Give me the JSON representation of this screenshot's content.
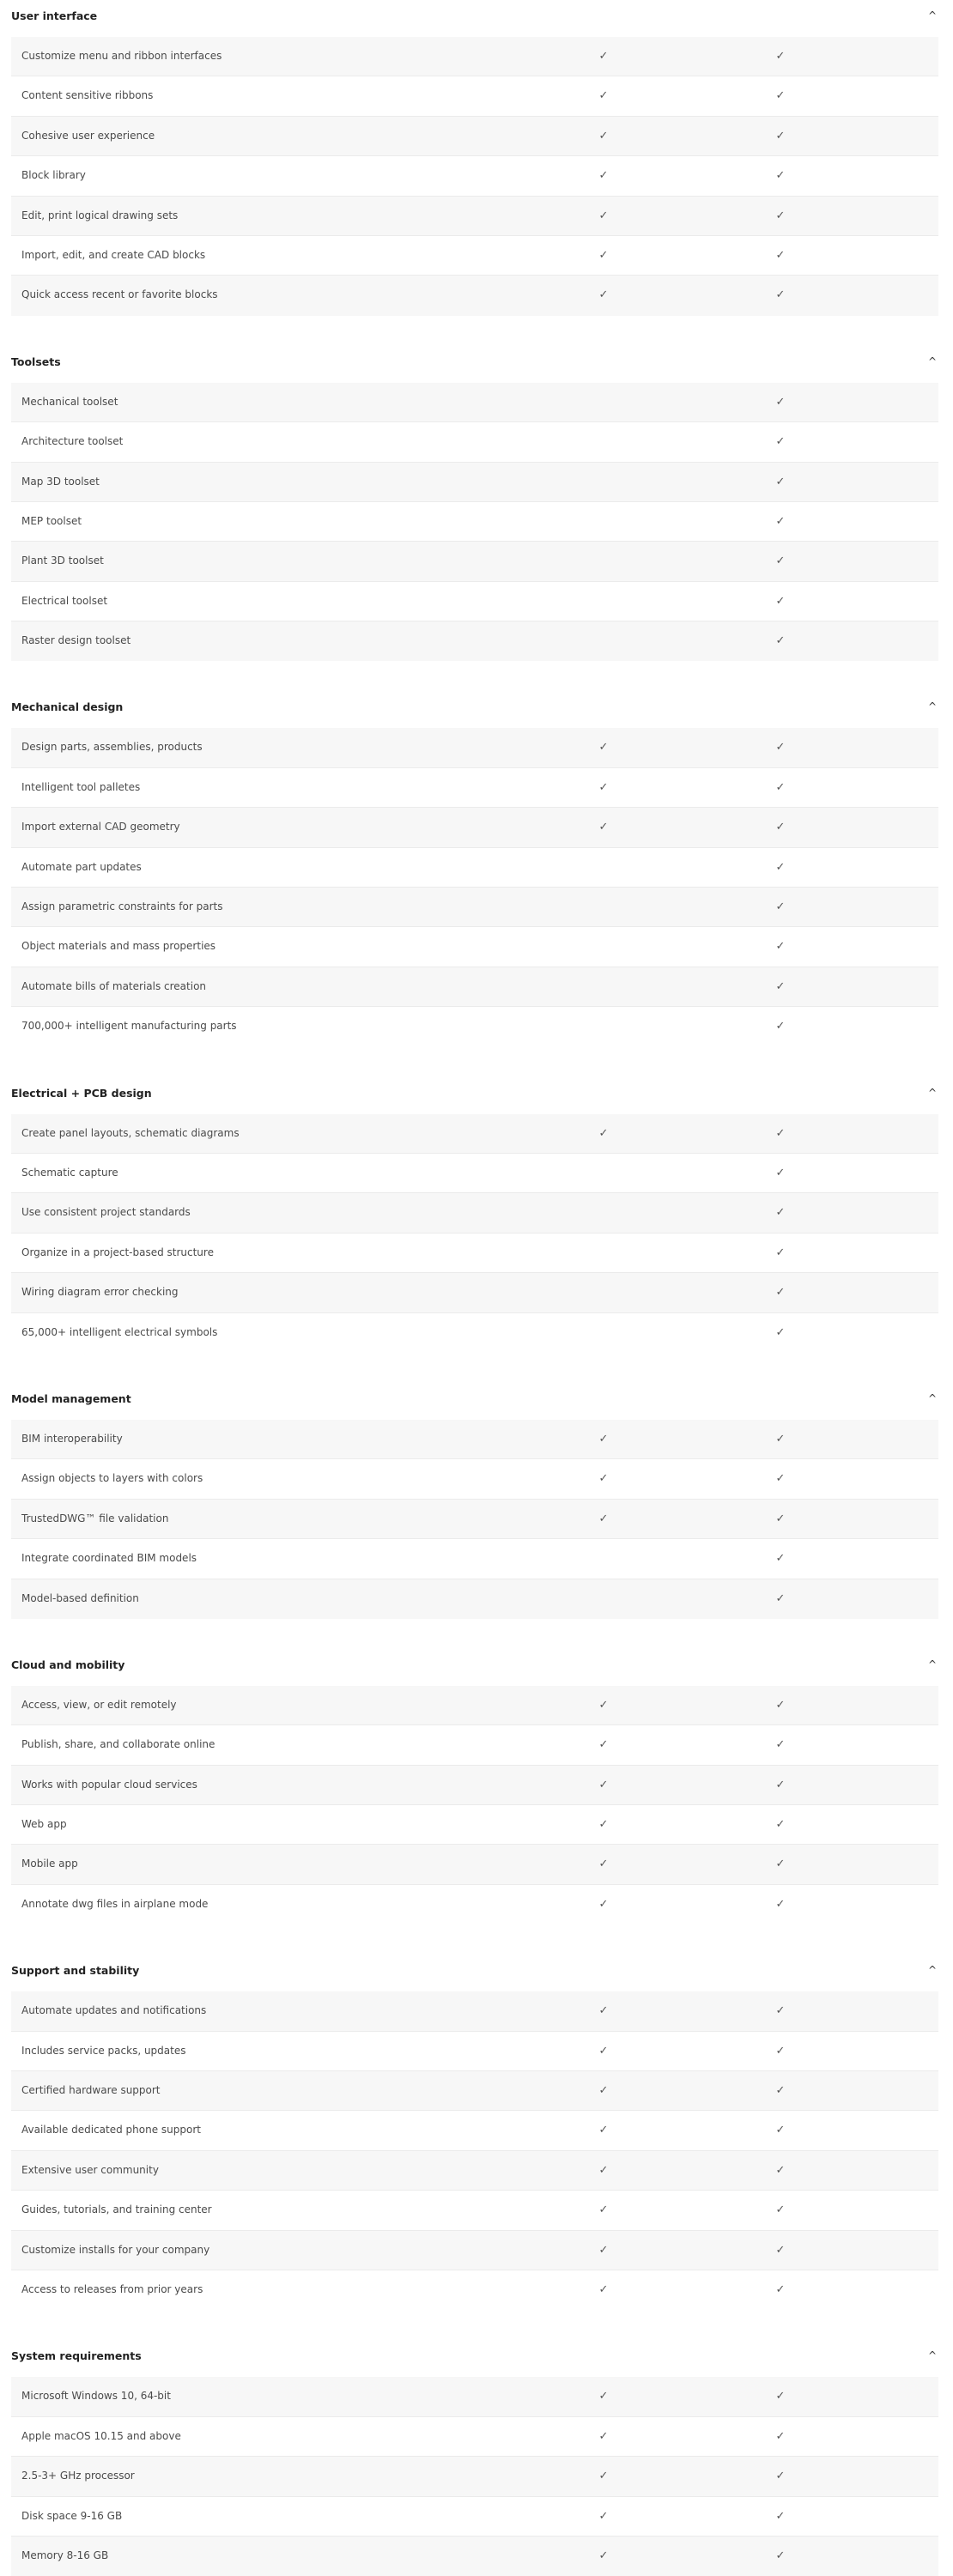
{
  "icons": {
    "collapse": "chevron-up-icon",
    "check": "checkmark-icon"
  },
  "colors": {
    "row_alt": "#f7f7f7",
    "divider": "#ebebeb",
    "text": "#4a4a4a"
  },
  "sections": [
    {
      "title": "User interface",
      "rows": [
        {
          "label": "Customize menu and ribbon interfaces",
          "col1": true,
          "col2": true
        },
        {
          "label": "Content sensitive ribbons",
          "col1": true,
          "col2": true
        },
        {
          "label": "Cohesive user experience",
          "col1": true,
          "col2": true
        },
        {
          "label": "Block library",
          "col1": true,
          "col2": true
        },
        {
          "label": "Edit, print logical drawing sets",
          "col1": true,
          "col2": true
        },
        {
          "label": "Import, edit, and create CAD blocks",
          "col1": true,
          "col2": true
        },
        {
          "label": "Quick access recent or favorite blocks",
          "col1": true,
          "col2": true
        }
      ]
    },
    {
      "title": "Toolsets",
      "rows": [
        {
          "label": "Mechanical toolset",
          "col1": false,
          "col2": true
        },
        {
          "label": "Architecture toolset",
          "col1": false,
          "col2": true
        },
        {
          "label": "Map 3D toolset",
          "col1": false,
          "col2": true
        },
        {
          "label": "MEP toolset",
          "col1": false,
          "col2": true
        },
        {
          "label": "Plant 3D toolset",
          "col1": false,
          "col2": true
        },
        {
          "label": "Electrical toolset",
          "col1": false,
          "col2": true
        },
        {
          "label": "Raster design toolset",
          "col1": false,
          "col2": true
        }
      ]
    },
    {
      "title": "Mechanical design",
      "rows": [
        {
          "label": "Design parts, assemblies, products",
          "col1": true,
          "col2": true
        },
        {
          "label": "Intelligent tool palletes",
          "col1": true,
          "col2": true
        },
        {
          "label": "Import external CAD geometry",
          "col1": true,
          "col2": true
        },
        {
          "label": "Automate part updates",
          "col1": false,
          "col2": true
        },
        {
          "label": "Assign parametric constraints for parts",
          "col1": false,
          "col2": true
        },
        {
          "label": "Object materials and mass properties",
          "col1": false,
          "col2": true
        },
        {
          "label": "Automate bills of materials creation",
          "col1": false,
          "col2": true
        },
        {
          "label": "700,000+ intelligent manufacturing parts",
          "col1": false,
          "col2": true
        }
      ]
    },
    {
      "title": "Electrical + PCB design",
      "rows": [
        {
          "label": "Create panel layouts, schematic diagrams",
          "col1": true,
          "col2": true
        },
        {
          "label": "Schematic capture",
          "col1": false,
          "col2": true
        },
        {
          "label": "Use consistent project standards",
          "col1": false,
          "col2": true
        },
        {
          "label": "Organize in a project-based structure",
          "col1": false,
          "col2": true
        },
        {
          "label": "Wiring diagram error checking",
          "col1": false,
          "col2": true
        },
        {
          "label": "65,000+ intelligent electrical symbols",
          "col1": false,
          "col2": true
        }
      ]
    },
    {
      "title": "Model management",
      "rows": [
        {
          "label": "BIM interoperability",
          "col1": true,
          "col2": true
        },
        {
          "label": "Assign objects to layers with colors",
          "col1": true,
          "col2": true
        },
        {
          "label": "TrustedDWG™ file validation",
          "col1": true,
          "col2": true
        },
        {
          "label": "Integrate coordinated BIM models",
          "col1": false,
          "col2": true
        },
        {
          "label": "Model-based definition",
          "col1": false,
          "col2": true
        }
      ]
    },
    {
      "title": "Cloud and mobility",
      "rows": [
        {
          "label": "Access, view, or edit remotely",
          "col1": true,
          "col2": true
        },
        {
          "label": "Publish, share, and collaborate online",
          "col1": true,
          "col2": true
        },
        {
          "label": "Works with popular cloud services",
          "col1": true,
          "col2": true
        },
        {
          "label": "Web app",
          "col1": true,
          "col2": true
        },
        {
          "label": "Mobile app",
          "col1": true,
          "col2": true
        },
        {
          "label": "Annotate dwg files in airplane mode",
          "col1": true,
          "col2": true
        }
      ]
    },
    {
      "title": "Support and stability",
      "rows": [
        {
          "label": "Automate updates and notifications",
          "col1": true,
          "col2": true
        },
        {
          "label": "Includes service packs, updates",
          "col1": true,
          "col2": true
        },
        {
          "label": "Certified hardware support",
          "col1": true,
          "col2": true
        },
        {
          "label": "Available dedicated phone support",
          "col1": true,
          "col2": true
        },
        {
          "label": "Extensive user community",
          "col1": true,
          "col2": true
        },
        {
          "label": "Guides, tutorials, and training center",
          "col1": true,
          "col2": true
        },
        {
          "label": "Customize installs for your company",
          "col1": true,
          "col2": true
        },
        {
          "label": "Access to releases from prior years",
          "col1": true,
          "col2": true
        }
      ]
    },
    {
      "title": "System requirements",
      "rows": [
        {
          "label": "Microsoft Windows 10, 64-bit",
          "col1": true,
          "col2": true
        },
        {
          "label": "Apple macOS 10.15 and above",
          "col1": true,
          "col2": true
        },
        {
          "label": "2.5-3+ GHz processor",
          "col1": true,
          "col2": true
        },
        {
          "label": "Disk space 9-16 GB",
          "col1": true,
          "col2": true
        },
        {
          "label": "Memory 8-16 GB",
          "col1": true,
          "col2": true
        }
      ]
    }
  ]
}
